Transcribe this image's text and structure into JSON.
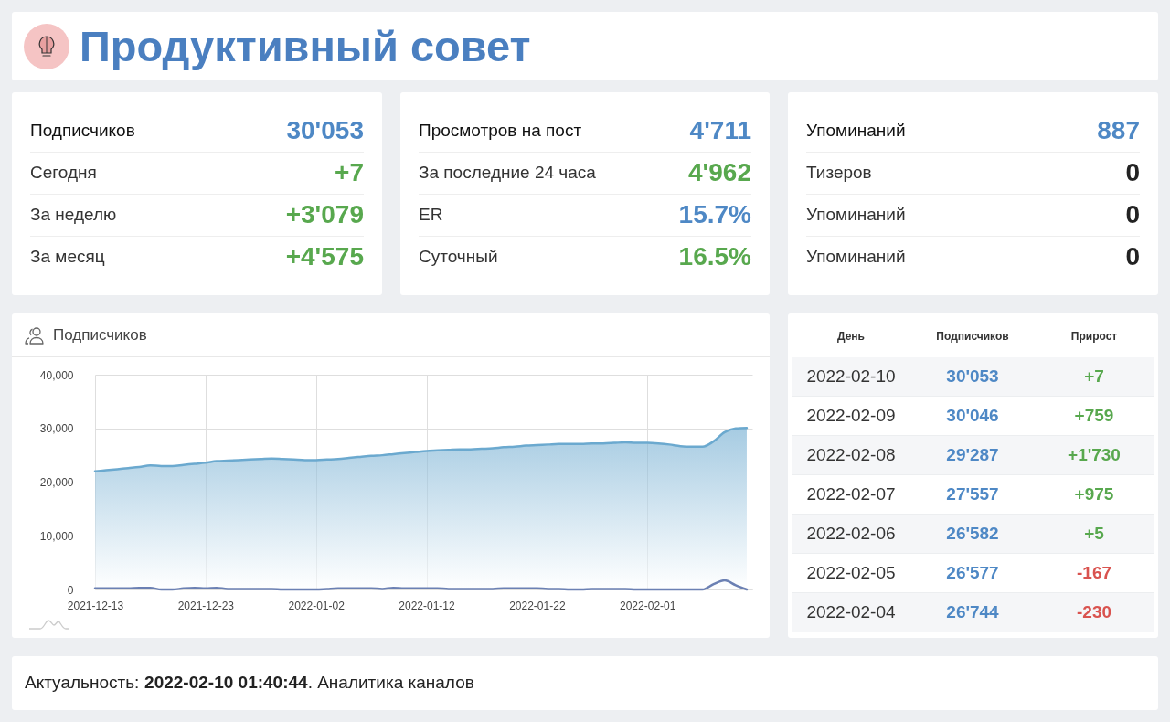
{
  "chart_data": [
    {
      "type": "other",
      "title": "Продуктивный совет"
    },
    {
      "type": "other",
      "categories": [
        "Подписчиков",
        "Сегодня",
        "За неделю",
        "За месяц"
      ],
      "values": [
        30053,
        7,
        3079,
        4575
      ],
      "value_labels": [
        "30'053",
        "+7",
        "+3'079",
        "+4'575"
      ]
    },
    {
      "type": "other",
      "categories": [
        "Просмотров на пост",
        "За последние 24 часа",
        "ER",
        "Суточный"
      ],
      "values": [
        4711,
        4962,
        15.7,
        16.5
      ],
      "value_labels": [
        "4'711",
        "4'962",
        "15.7%",
        "16.5%"
      ]
    },
    {
      "type": "other",
      "categories": [
        "Упоминаний",
        "Тизеров",
        "Упоминаний",
        "Упоминаний"
      ],
      "values": [
        887,
        0,
        0,
        0
      ],
      "value_labels": [
        "887",
        "0",
        "0",
        "0"
      ]
    },
    {
      "type": "area",
      "title": "Подписчиков",
      "x": [
        "2021-12-13",
        "2021-12-14",
        "2021-12-15",
        "2021-12-16",
        "2021-12-17",
        "2021-12-18",
        "2021-12-19",
        "2021-12-20",
        "2021-12-21",
        "2021-12-22",
        "2021-12-23",
        "2021-12-24",
        "2021-12-25",
        "2021-12-26",
        "2021-12-27",
        "2021-12-28",
        "2021-12-29",
        "2021-12-30",
        "2021-12-31",
        "2022-01-01",
        "2022-01-02",
        "2022-01-03",
        "2022-01-04",
        "2022-01-05",
        "2022-01-06",
        "2022-01-07",
        "2022-01-08",
        "2022-01-09",
        "2022-01-10",
        "2022-01-11",
        "2022-01-12",
        "2022-01-13",
        "2022-01-14",
        "2022-01-15",
        "2022-01-16",
        "2022-01-17",
        "2022-01-18",
        "2022-01-19",
        "2022-01-20",
        "2022-01-21",
        "2022-01-22",
        "2022-01-23",
        "2022-01-24",
        "2022-01-25",
        "2022-01-26",
        "2022-01-27",
        "2022-01-28",
        "2022-01-29",
        "2022-01-30",
        "2022-01-31",
        "2022-02-01",
        "2022-02-02",
        "2022-02-03",
        "2022-02-04",
        "2022-02-05",
        "2022-02-06",
        "2022-02-07",
        "2022-02-08",
        "2022-02-09",
        "2022-02-10"
      ],
      "series": [
        {
          "color": "#6ba9cf",
          "values": [
            22000,
            22200,
            22400,
            22600,
            22800,
            23100,
            23000,
            23000,
            23200,
            23400,
            23600,
            23900,
            24000,
            24100,
            24200,
            24300,
            24400,
            24300,
            24200,
            24100,
            24100,
            24200,
            24300,
            24500,
            24700,
            24900,
            25000,
            25200,
            25400,
            25600,
            25800,
            25900,
            26000,
            26100,
            26100,
            26200,
            26300,
            26500,
            26600,
            26800,
            26900,
            27000,
            27100,
            27100,
            27100,
            27200,
            27200,
            27300,
            27400,
            27300,
            27300,
            27200,
            27000,
            26700,
            26600,
            26600,
            27600,
            29300,
            30000,
            30100
          ]
        },
        {
          "type": "line",
          "color": "#6b80b3",
          "values": [
            200,
            200,
            200,
            200,
            300,
            300,
            0,
            0,
            200,
            300,
            200,
            300,
            100,
            100,
            100,
            100,
            100,
            0,
            0,
            0,
            0,
            100,
            200,
            200,
            200,
            200,
            100,
            300,
            200,
            200,
            200,
            200,
            100,
            100,
            100,
            100,
            100,
            200,
            200,
            200,
            200,
            100,
            100,
            0,
            0,
            100,
            100,
            100,
            100,
            0,
            0,
            0,
            0,
            0,
            0,
            0,
            1000,
            1700,
            800,
            0
          ]
        }
      ],
      "xlim": [
        "2021-12-13",
        "2022-02-10T12:00"
      ],
      "xticks": [
        "2021-12-13",
        "2021-12-23",
        "2022-01-02",
        "2022-01-12",
        "2022-01-22",
        "2022-02-01"
      ],
      "ylim": [
        0,
        40000
      ],
      "yticks": [
        0,
        {
          "value": 10000,
          "label": "10,000"
        },
        {
          "value": 20000,
          "label": "20,000"
        },
        {
          "value": 30000,
          "label": "30,000"
        },
        {
          "value": 40000,
          "label": "40,000"
        }
      ],
      "grid": true
    },
    {
      "type": "other",
      "xlabel": "День",
      "categories": [
        "2022-02-10",
        "2022-02-09",
        "2022-02-08",
        "2022-02-07",
        "2022-02-06",
        "2022-02-05",
        "2022-02-04"
      ],
      "series": [
        {
          "name": "Подписчиков",
          "values": [
            30053,
            30046,
            29287,
            27557,
            26582,
            26577,
            26744
          ],
          "value_labels": [
            "30'053",
            "30'046",
            "29'287",
            "27'557",
            "26'582",
            "26'577",
            "26'744"
          ]
        },
        {
          "name": "Прирост",
          "values": [
            7,
            759,
            1730,
            975,
            5,
            -167,
            -230
          ],
          "value_labels": [
            "+7",
            "+759",
            "+1'730",
            "+975",
            "+5",
            "-167",
            "-230"
          ]
        }
      ]
    },
    {
      "type": "other",
      "annotations": [
        "Актуальность:",
        "2022-02-10 01:40:44",
        ". Аналитика каналов"
      ]
    }
  ]
}
